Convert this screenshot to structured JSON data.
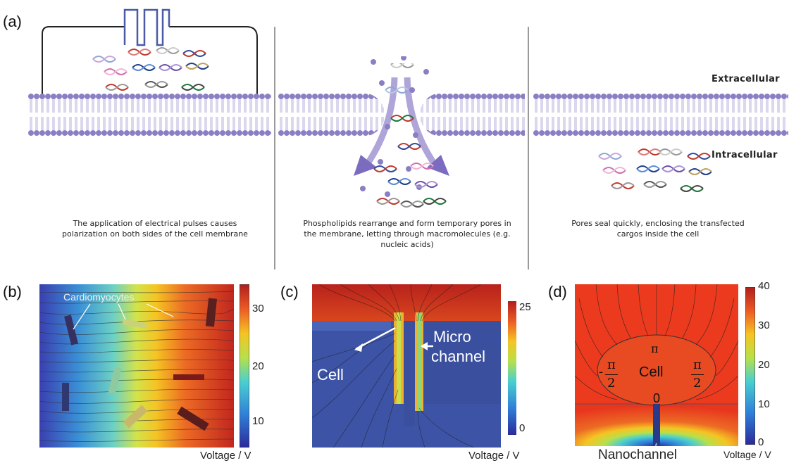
{
  "panel_a": {
    "label": "(a)",
    "extracellular": "Extracellular",
    "intracellular": "Intracellular",
    "captions": [
      "The application of electrical pulses causes polarization on both sides of the cell membrane",
      "Phospholipids rearrange and form temporary pores in the membrane, letting through macromolecules (e.g. nucleic acids)",
      "Pores seal quickly, enclosing the transfected cargos inside the cell"
    ],
    "colors": {
      "lipid": "#8a7fc4",
      "lipid_tail": "#b7b0dd",
      "pulse": "#4a5aa8"
    }
  },
  "panel_b": {
    "label": "(b)",
    "annotation": "Cardiomyocytes",
    "colorbar_ticks": [
      "30",
      "20",
      "10"
    ],
    "colorbar_title": "Voltage / V"
  },
  "panel_c": {
    "label": "(c)",
    "annotation_cell": "Cell",
    "annotation_channel_1": "Micro",
    "annotation_channel_2": "channel",
    "colorbar_ticks": [
      "25",
      "0"
    ],
    "colorbar_title": "Voltage / V"
  },
  "panel_d": {
    "label": "(d)",
    "cell_label": "Cell",
    "angle_top": "π",
    "angle_left_sign": "-",
    "angle_left_num": "π",
    "angle_left_den": "2",
    "angle_right_num": "π",
    "angle_right_den": "2",
    "angle_bottom": "0",
    "annotation": "Nanochannel",
    "colorbar_ticks": [
      "40",
      "30",
      "20",
      "10",
      "0"
    ],
    "colorbar_title": "Voltage / V"
  }
}
